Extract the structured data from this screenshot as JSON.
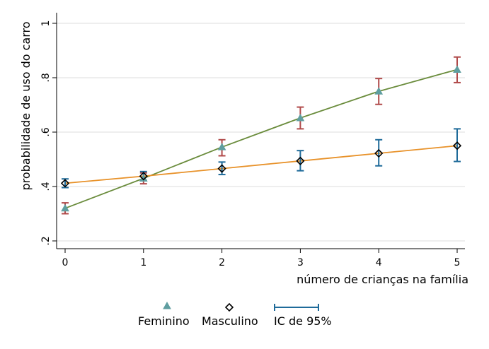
{
  "chart_data": {
    "type": "line",
    "xlabel": "número de crianças na família",
    "ylabel": "probabilidade de uso do carro",
    "x": [
      0,
      1,
      2,
      3,
      4,
      5
    ],
    "xticks": [
      "0",
      "1",
      "2",
      "3",
      "4",
      "5"
    ],
    "yticks": [
      0.2,
      0.4,
      0.6,
      0.8,
      1.0
    ],
    "ytick_labels": [
      ".2",
      ".4",
      ".6",
      ".8",
      "1"
    ],
    "xlim": [
      0,
      5
    ],
    "ylim": [
      0.2,
      1.0
    ],
    "grid": true,
    "legend_position": "bottom",
    "series": [
      {
        "name": "Feminino",
        "marker": "triangle",
        "line_color": "#6a8c3c",
        "marker_color": "#5f9ea0",
        "ci_color": "#b04a4a",
        "values": [
          0.32,
          0.43,
          0.545,
          0.652,
          0.75,
          0.83
        ],
        "ci_low": [
          0.3,
          0.41,
          0.513,
          0.612,
          0.702,
          0.782
        ],
        "ci_high": [
          0.34,
          0.45,
          0.572,
          0.692,
          0.797,
          0.876
        ]
      },
      {
        "name": "Masculino",
        "marker": "diamond",
        "line_color": "#e8922a",
        "marker_color": "#000000",
        "ci_color": "#1f6b9a",
        "values": [
          0.412,
          0.438,
          0.466,
          0.494,
          0.522,
          0.55
        ],
        "ci_low": [
          0.396,
          0.422,
          0.444,
          0.458,
          0.476,
          0.492
        ],
        "ci_high": [
          0.428,
          0.455,
          0.49,
          0.532,
          0.572,
          0.612
        ]
      }
    ],
    "legend": {
      "ci_label": "IC de 95%",
      "ci_color": "#1f6b9a"
    }
  }
}
